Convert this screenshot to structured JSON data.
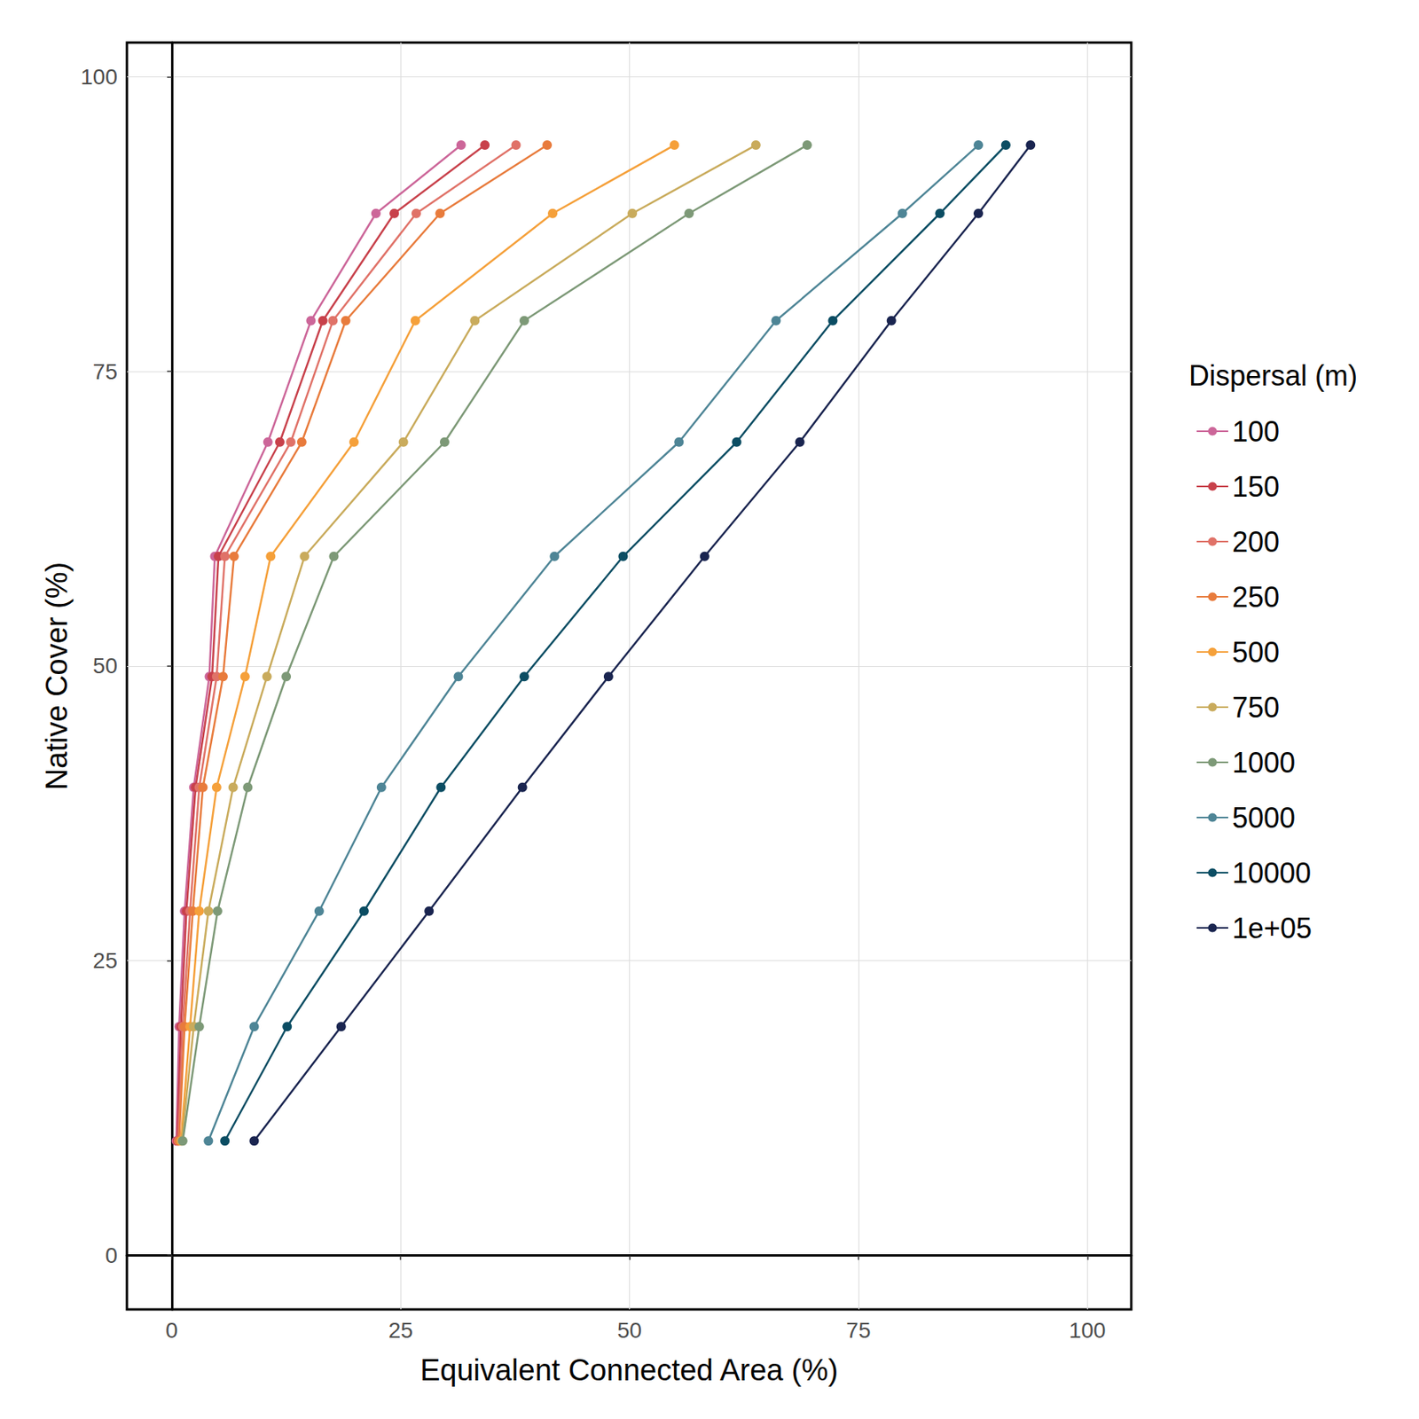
{
  "chart_data": {
    "type": "line",
    "x_label": "Equivalent Connected Area (%)",
    "y_label": "Native Cover (%)",
    "legend_title": "Dispersal (m)",
    "legend": "right",
    "grid": true,
    "marker": "circle",
    "xlim": [
      -4.9,
      104.8
    ],
    "ylim": [
      -4.6,
      102.9
    ],
    "xticks": [
      0,
      25,
      50,
      75,
      100
    ],
    "yticks": [
      0,
      25,
      50,
      75,
      100
    ],
    "y": [
      9.7,
      19.4,
      29.2,
      39.7,
      49.1,
      59.3,
      69.0,
      79.3,
      88.4,
      94.2
    ],
    "series": [
      {
        "name": "100",
        "color": "#CC6699",
        "x": [
          0.5,
          0.8,
          1.4,
          2.4,
          4.1,
          4.7,
          10.5,
          15.2,
          22.3,
          31.6
        ]
      },
      {
        "name": "150",
        "color": "#C8414B",
        "x": [
          0.6,
          1.0,
          1.6,
          2.6,
          4.4,
          5.1,
          11.8,
          16.5,
          24.3,
          34.2
        ]
      },
      {
        "name": "200",
        "color": "#E07268",
        "x": [
          0.7,
          1.2,
          2.0,
          3.0,
          4.9,
          5.8,
          13.0,
          17.6,
          26.7,
          37.6
        ]
      },
      {
        "name": "250",
        "color": "#E87B3C",
        "x": [
          0.8,
          1.4,
          2.3,
          3.4,
          5.6,
          6.8,
          14.2,
          19.0,
          29.3,
          41.0
        ]
      },
      {
        "name": "500",
        "color": "#F5A03A",
        "x": [
          1.0,
          2.0,
          3.0,
          4.9,
          8.0,
          10.8,
          19.9,
          26.6,
          41.6,
          54.9
        ]
      },
      {
        "name": "750",
        "color": "#C9AB5C",
        "x": [
          1.1,
          2.4,
          4.0,
          6.7,
          10.4,
          14.5,
          25.3,
          33.1,
          50.3,
          63.8
        ]
      },
      {
        "name": "1000",
        "color": "#7D9977",
        "x": [
          1.2,
          3.0,
          5.0,
          8.3,
          12.5,
          17.7,
          29.8,
          38.5,
          56.5,
          69.4
        ]
      },
      {
        "name": "5000",
        "color": "#4E8596",
        "x": [
          4.0,
          9.0,
          16.1,
          22.9,
          31.3,
          41.8,
          55.4,
          66.0,
          79.8,
          88.1
        ]
      },
      {
        "name": "10000",
        "color": "#0B4D63",
        "x": [
          5.8,
          12.6,
          21.0,
          29.4,
          38.5,
          49.3,
          61.7,
          72.2,
          83.9,
          91.1
        ]
      },
      {
        "name": "1e+05",
        "color": "#1A2550",
        "x": [
          9.0,
          18.5,
          28.1,
          38.3,
          47.7,
          58.2,
          68.6,
          78.6,
          88.1,
          93.8
        ]
      }
    ]
  }
}
